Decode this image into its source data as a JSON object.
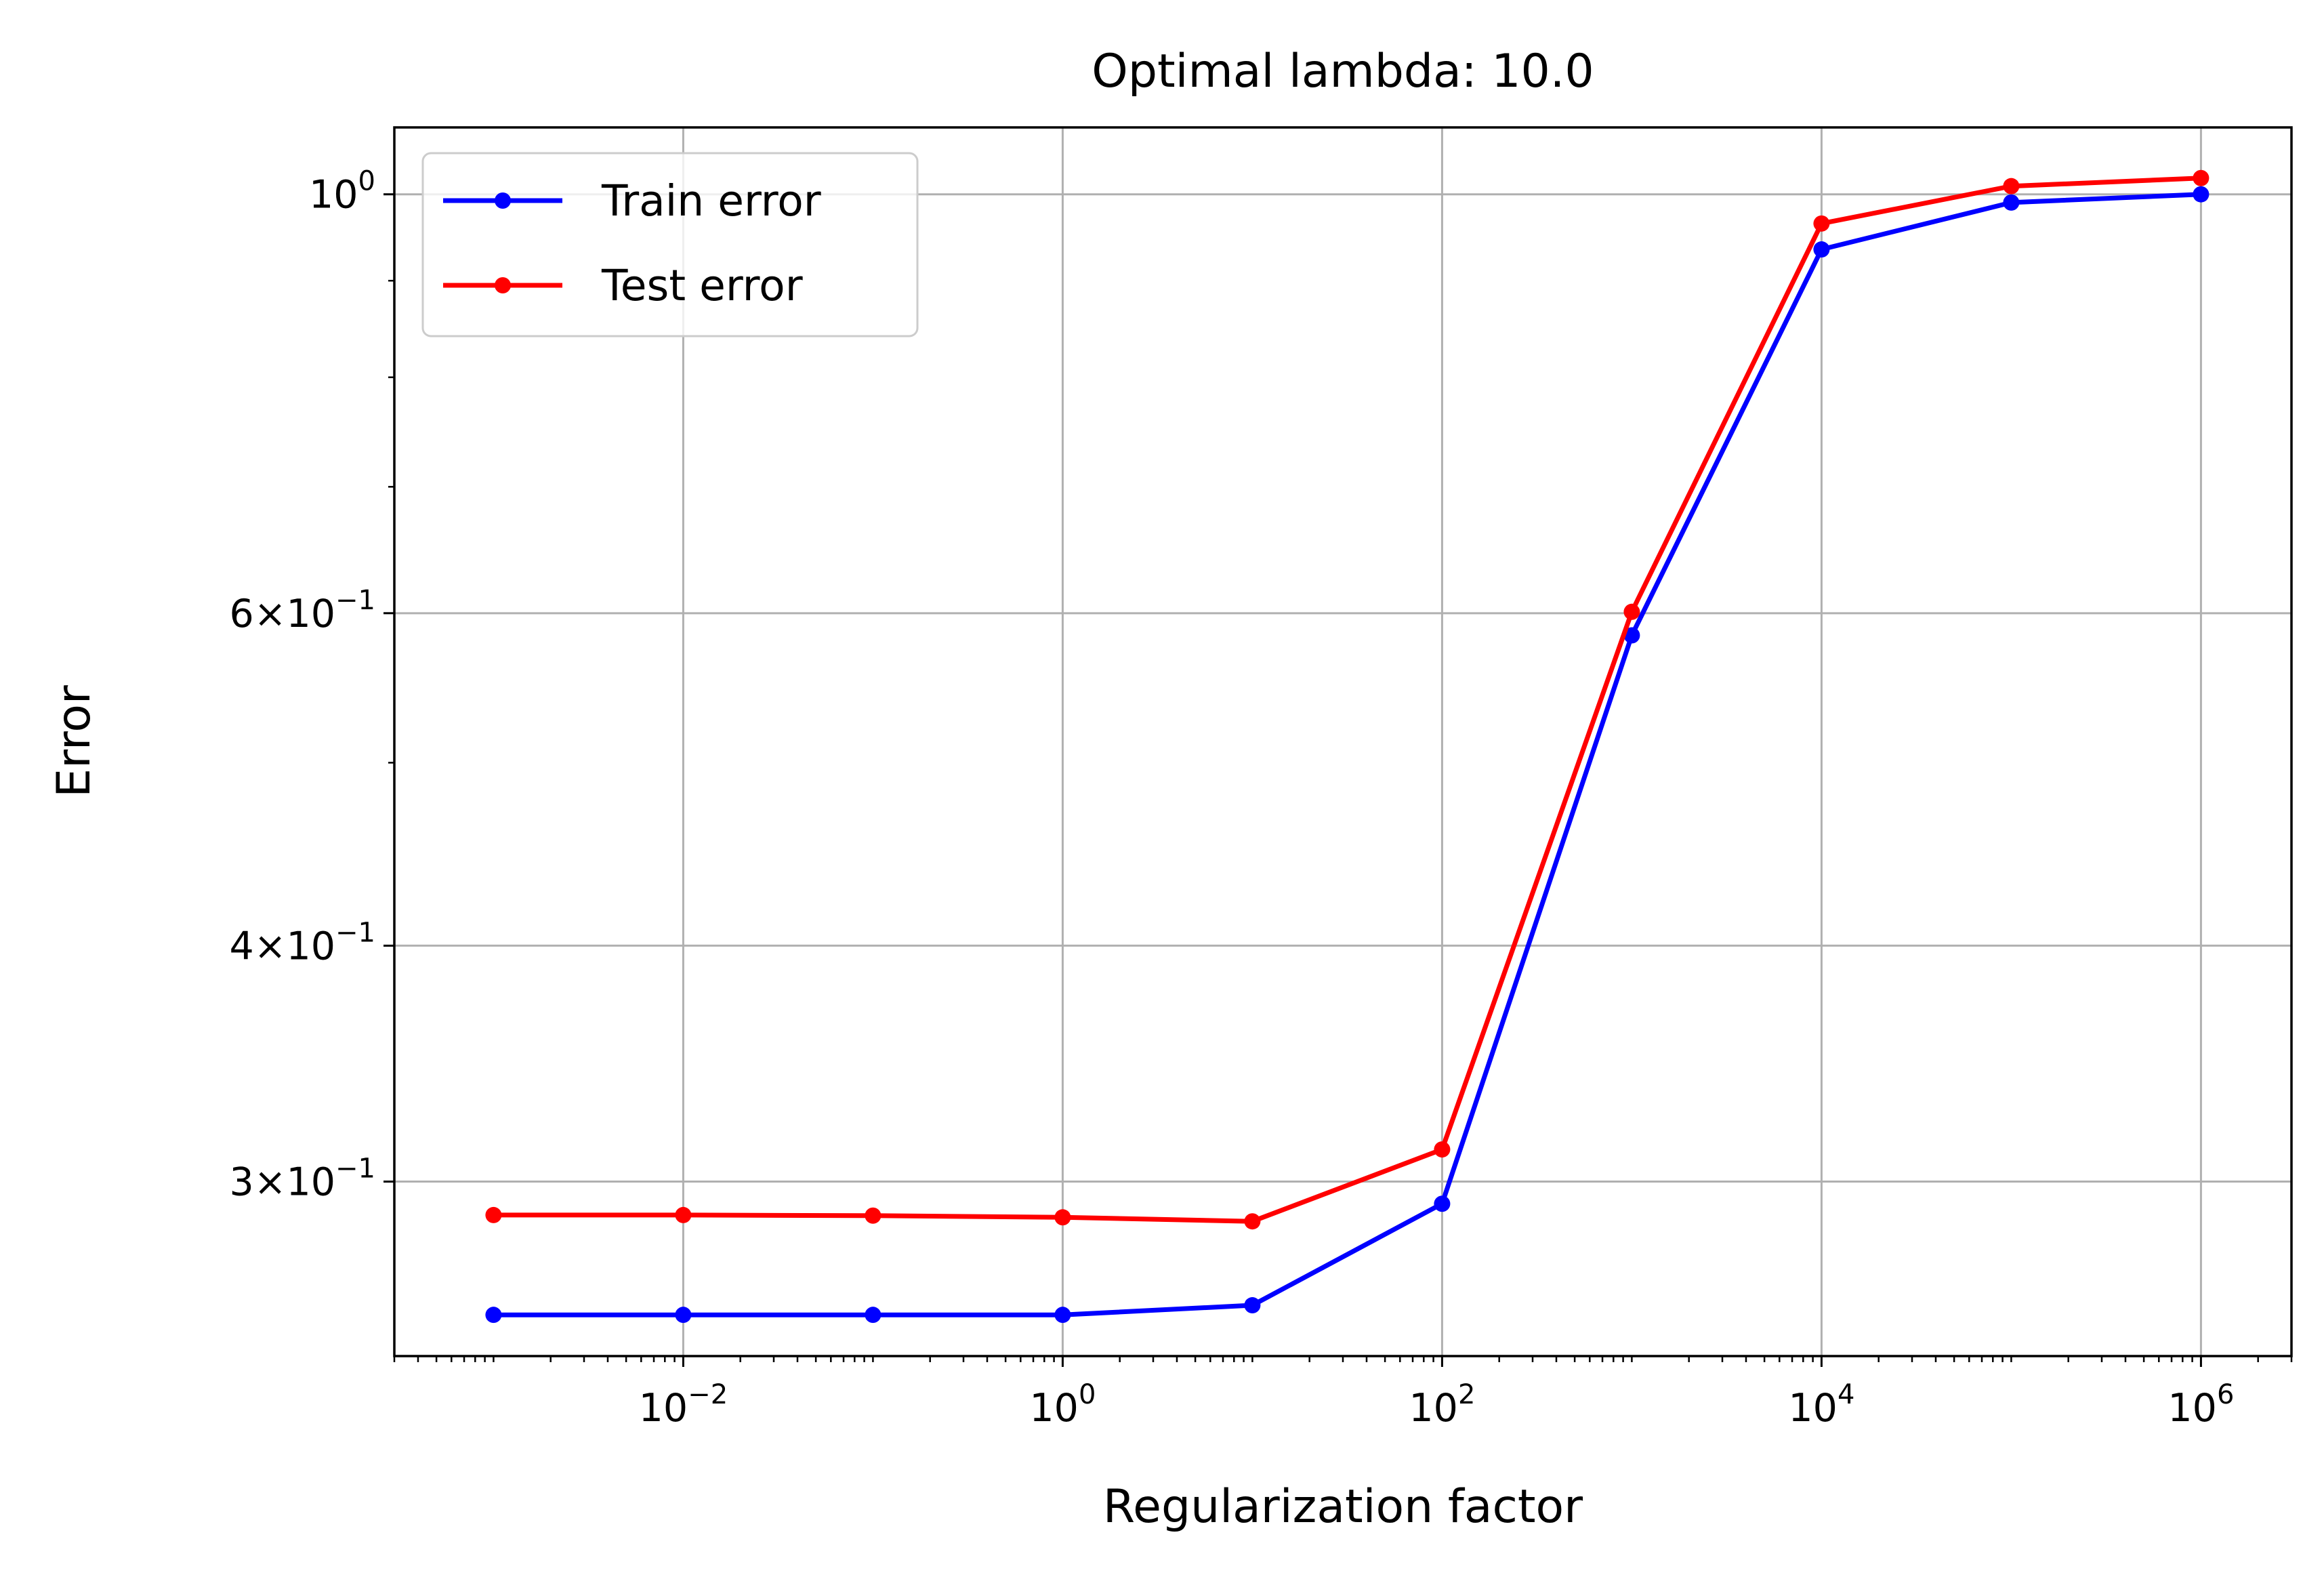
{
  "chart_data": {
    "type": "line",
    "title": "Optimal lambda: 10.0",
    "xlabel": "Regularization factor",
    "ylabel": "Error",
    "x_scale": "log",
    "y_scale": "log",
    "xlim": [
      0.0003,
      3000000
    ],
    "ylim": [
      0.2425,
      1.085
    ],
    "grid": true,
    "legend_position": "top-left",
    "x_ticks": [
      {
        "value": 0.01,
        "base": "10",
        "exp": "−2"
      },
      {
        "value": 1,
        "base": "10",
        "exp": "0"
      },
      {
        "value": 100,
        "base": "10",
        "exp": "2"
      },
      {
        "value": 10000,
        "base": "10",
        "exp": "4"
      },
      {
        "value": 1000000,
        "base": "10",
        "exp": "6"
      }
    ],
    "y_ticks": [
      {
        "value": 1.0,
        "mant": "",
        "base": "10",
        "exp": "0"
      },
      {
        "value": 0.6,
        "mant": "6×",
        "base": "10",
        "exp": "−1"
      },
      {
        "value": 0.4,
        "mant": "4×",
        "base": "10",
        "exp": "−1"
      },
      {
        "value": 0.3,
        "mant": "3×",
        "base": "10",
        "exp": "−1"
      }
    ],
    "y_minor_ticks": [
      0.5,
      0.7,
      0.8,
      0.9
    ],
    "x": [
      0.001,
      0.01,
      0.1,
      1,
      10,
      100,
      1000,
      10000,
      100000,
      1000000
    ],
    "series": [
      {
        "name": "Train error",
        "color": "#0000ff",
        "marker": "circle",
        "values": [
          0.255,
          0.255,
          0.255,
          0.255,
          0.258,
          0.292,
          0.584,
          0.935,
          0.99,
          1.0
        ]
      },
      {
        "name": "Test error",
        "color": "#ff0000",
        "marker": "circle",
        "values": [
          0.288,
          0.288,
          0.2878,
          0.2872,
          0.2858,
          0.312,
          0.601,
          0.965,
          1.01,
          1.02
        ]
      }
    ]
  }
}
